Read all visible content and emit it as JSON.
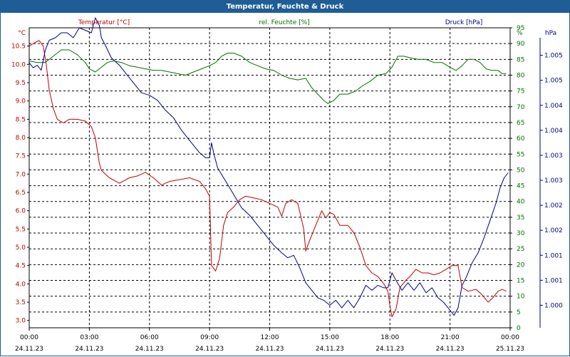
{
  "window": {
    "title": "Temperatur, Feuchte & Druck"
  },
  "colors": {
    "temperature": "#c00000",
    "humidity": "#007000",
    "pressure": "#00008b",
    "grid": "#000000",
    "titlebar": "#1f5d96"
  },
  "chart_data": {
    "type": "line",
    "grid": true,
    "x_range": [
      "24.11.23 00:00",
      "25.11.23 00:00"
    ],
    "x_ticks": [
      {
        "time": "00:00",
        "date": "24.11.23"
      },
      {
        "time": "03:00",
        "date": "24.11.23"
      },
      {
        "time": "06:00",
        "date": "24.11.23"
      },
      {
        "time": "09:00",
        "date": "24.11.23"
      },
      {
        "time": "12:00",
        "date": "24.11.23"
      },
      {
        "time": "15:00",
        "date": "24.11.23"
      },
      {
        "time": "18:00",
        "date": "24.11.23"
      },
      {
        "time": "21:00",
        "date": "24.11.23"
      },
      {
        "time": "00:00",
        "date": "25.11.23"
      }
    ],
    "axes": {
      "temperature": {
        "label": "Temperatur [°C]",
        "unit": "°C",
        "range": [
          2.8,
          11.0
        ],
        "ticks": [
          "3.0",
          "3.5",
          "4.0",
          "4.5",
          "5.0",
          "5.5",
          "6.0",
          "6.5",
          "7.0",
          "7.5",
          "8.0",
          "8.5",
          "9.0",
          "9.5",
          "10.0",
          "10.5"
        ]
      },
      "humidity": {
        "label": "rel. Feuchte [%]",
        "unit": "%",
        "range": [
          0,
          95
        ],
        "ticks": [
          "0",
          "5",
          "10",
          "15",
          "20",
          "25",
          "30",
          "35",
          "40",
          "45",
          "50",
          "55",
          "60",
          "65",
          "70",
          "75",
          "80",
          "85",
          "90",
          "95"
        ]
      },
      "pressure": {
        "label": "Druck [hPa]",
        "unit": "hPa",
        "range": [
          999.55,
          1005.55
        ],
        "ticks": [
          {
            "value": 1000.0,
            "label": "1.000"
          },
          {
            "value": 1000.5,
            "label": "1.001"
          },
          {
            "value": 1001.0,
            "label": "1.001"
          },
          {
            "value": 1001.5,
            "label": "1.002"
          },
          {
            "value": 1002.0,
            "label": "1.002"
          },
          {
            "value": 1002.5,
            "label": "1.003"
          },
          {
            "value": 1003.0,
            "label": "1.003"
          },
          {
            "value": 1003.5,
            "label": "1.004"
          },
          {
            "value": 1004.0,
            "label": "1.004"
          },
          {
            "value": 1004.5,
            "label": "1.005"
          },
          {
            "value": 1005.0,
            "label": "1.005"
          }
        ]
      }
    },
    "series": [
      {
        "name": "Temperatur [°C]",
        "axis": "temperature",
        "points": [
          [
            0.0,
            10.5
          ],
          [
            0.3,
            10.6
          ],
          [
            0.5,
            10.65
          ],
          [
            0.7,
            10.5
          ],
          [
            0.85,
            10.0
          ],
          [
            1.0,
            9.3
          ],
          [
            1.2,
            8.8
          ],
          [
            1.4,
            8.5
          ],
          [
            1.7,
            8.4
          ],
          [
            2.0,
            8.5
          ],
          [
            2.4,
            8.5
          ],
          [
            2.8,
            8.45
          ],
          [
            3.1,
            8.3
          ],
          [
            3.3,
            8.0
          ],
          [
            3.5,
            7.3
          ],
          [
            3.6,
            7.1
          ],
          [
            4.0,
            6.9
          ],
          [
            4.5,
            6.75
          ],
          [
            5.0,
            6.9
          ],
          [
            5.4,
            6.95
          ],
          [
            5.8,
            7.05
          ],
          [
            6.2,
            6.9
          ],
          [
            6.6,
            6.7
          ],
          [
            7.0,
            6.8
          ],
          [
            7.5,
            6.85
          ],
          [
            8.0,
            6.9
          ],
          [
            8.5,
            6.8
          ],
          [
            8.8,
            6.6
          ],
          [
            9.0,
            6.4
          ],
          [
            9.1,
            4.5
          ],
          [
            9.3,
            4.35
          ],
          [
            9.5,
            4.7
          ],
          [
            9.7,
            5.6
          ],
          [
            9.9,
            5.95
          ],
          [
            10.2,
            6.1
          ],
          [
            10.5,
            6.3
          ],
          [
            10.8,
            6.4
          ],
          [
            11.2,
            6.35
          ],
          [
            11.6,
            6.3
          ],
          [
            12.0,
            6.2
          ],
          [
            12.4,
            6.1
          ],
          [
            12.6,
            5.85
          ],
          [
            12.8,
            6.2
          ],
          [
            13.1,
            6.3
          ],
          [
            13.4,
            6.2
          ],
          [
            13.7,
            5.5
          ],
          [
            13.8,
            4.9
          ],
          [
            14.0,
            5.2
          ],
          [
            14.3,
            5.6
          ],
          [
            14.6,
            6.0
          ],
          [
            14.8,
            5.8
          ],
          [
            15.0,
            5.95
          ],
          [
            15.2,
            5.9
          ],
          [
            15.5,
            5.6
          ],
          [
            15.9,
            5.6
          ],
          [
            16.2,
            5.4
          ],
          [
            16.5,
            5.0
          ],
          [
            16.8,
            4.5
          ],
          [
            17.1,
            4.3
          ],
          [
            17.4,
            4.2
          ],
          [
            17.7,
            4.0
          ],
          [
            17.9,
            3.8
          ],
          [
            18.0,
            3.4
          ],
          [
            18.1,
            3.1
          ],
          [
            18.3,
            3.3
          ],
          [
            18.5,
            3.9
          ],
          [
            18.8,
            4.1
          ],
          [
            19.0,
            4.2
          ],
          [
            19.3,
            4.4
          ],
          [
            19.6,
            4.3
          ],
          [
            19.9,
            4.3
          ],
          [
            20.2,
            4.25
          ],
          [
            20.5,
            4.3
          ],
          [
            20.8,
            4.4
          ],
          [
            21.1,
            4.5
          ],
          [
            21.4,
            4.5
          ],
          [
            21.6,
            3.9
          ],
          [
            21.9,
            3.8
          ],
          [
            22.3,
            3.85
          ],
          [
            22.6,
            3.7
          ],
          [
            22.9,
            3.5
          ],
          [
            23.1,
            3.6
          ],
          [
            23.4,
            3.8
          ],
          [
            23.6,
            3.85
          ],
          [
            23.8,
            3.8
          ]
        ]
      },
      {
        "name": "rel. Feuchte [%]",
        "axis": "humidity",
        "points": [
          [
            0.0,
            84.5
          ],
          [
            0.4,
            84
          ],
          [
            0.8,
            84
          ],
          [
            1.2,
            86
          ],
          [
            1.6,
            88
          ],
          [
            2.0,
            88
          ],
          [
            2.4,
            86.5
          ],
          [
            2.8,
            84
          ],
          [
            3.0,
            82
          ],
          [
            3.3,
            81
          ],
          [
            3.6,
            82.5
          ],
          [
            3.9,
            84
          ],
          [
            4.2,
            84.5
          ],
          [
            4.6,
            84
          ],
          [
            5.0,
            83
          ],
          [
            5.4,
            82.5
          ],
          [
            5.8,
            82
          ],
          [
            6.2,
            81.5
          ],
          [
            6.6,
            81.5
          ],
          [
            7.0,
            81
          ],
          [
            7.4,
            80.5
          ],
          [
            7.8,
            80
          ],
          [
            8.2,
            81
          ],
          [
            8.6,
            82
          ],
          [
            9.0,
            83
          ],
          [
            9.3,
            84
          ],
          [
            9.6,
            86
          ],
          [
            9.9,
            87
          ],
          [
            10.2,
            87
          ],
          [
            10.6,
            86
          ],
          [
            11.0,
            84
          ],
          [
            11.4,
            83
          ],
          [
            11.8,
            82
          ],
          [
            12.2,
            81.5
          ],
          [
            12.6,
            80
          ],
          [
            13.0,
            79
          ],
          [
            13.4,
            78.5
          ],
          [
            13.8,
            79
          ],
          [
            14.1,
            76
          ],
          [
            14.4,
            74
          ],
          [
            14.7,
            72
          ],
          [
            14.9,
            71
          ],
          [
            15.2,
            72
          ],
          [
            15.5,
            74
          ],
          [
            15.9,
            74
          ],
          [
            16.3,
            75
          ],
          [
            16.6,
            76.5
          ],
          [
            17.0,
            78
          ],
          [
            17.4,
            80
          ],
          [
            17.8,
            80.5
          ],
          [
            18.1,
            82.5
          ],
          [
            18.4,
            86
          ],
          [
            18.7,
            86
          ],
          [
            19.0,
            85.5
          ],
          [
            19.4,
            85
          ],
          [
            19.8,
            85
          ],
          [
            20.2,
            84
          ],
          [
            20.6,
            84
          ],
          [
            21.0,
            82.5
          ],
          [
            21.3,
            81.5
          ],
          [
            21.6,
            83
          ],
          [
            21.9,
            85
          ],
          [
            22.2,
            85
          ],
          [
            22.5,
            84
          ],
          [
            22.8,
            82
          ],
          [
            23.1,
            81.5
          ],
          [
            23.4,
            81.5
          ],
          [
            23.6,
            80.5
          ],
          [
            23.8,
            80.5
          ]
        ]
      },
      {
        "name": "Druck [hPa]",
        "axis": "pressure",
        "points": [
          [
            0.0,
            1004.85
          ],
          [
            0.2,
            1004.75
          ],
          [
            0.4,
            1004.8
          ],
          [
            0.6,
            1004.7
          ],
          [
            0.8,
            1005.1
          ],
          [
            1.0,
            1005.3
          ],
          [
            1.3,
            1005.35
          ],
          [
            1.6,
            1005.45
          ],
          [
            1.9,
            1005.45
          ],
          [
            2.2,
            1005.35
          ],
          [
            2.5,
            1005.55
          ],
          [
            2.8,
            1005.5
          ],
          [
            3.1,
            1005.45
          ],
          [
            3.3,
            1005.75
          ],
          [
            3.5,
            1005.6
          ],
          [
            3.6,
            1005.35
          ],
          [
            3.8,
            1005.2
          ],
          [
            4.1,
            1004.95
          ],
          [
            4.5,
            1004.8
          ],
          [
            4.9,
            1004.6
          ],
          [
            5.3,
            1004.4
          ],
          [
            5.6,
            1004.25
          ],
          [
            6.0,
            1004.2
          ],
          [
            6.4,
            1004.1
          ],
          [
            6.8,
            1003.9
          ],
          [
            7.2,
            1003.75
          ],
          [
            7.6,
            1003.5
          ],
          [
            7.9,
            1003.35
          ],
          [
            8.2,
            1003.2
          ],
          [
            8.5,
            1003.05
          ],
          [
            8.8,
            1002.95
          ],
          [
            9.0,
            1002.95
          ],
          [
            9.1,
            1003.25
          ],
          [
            9.2,
            1003.05
          ],
          [
            9.4,
            1002.75
          ],
          [
            9.7,
            1002.55
          ],
          [
            10.0,
            1002.35
          ],
          [
            10.3,
            1002.15
          ],
          [
            10.6,
            1001.95
          ],
          [
            11.0,
            1001.8
          ],
          [
            11.4,
            1001.6
          ],
          [
            11.8,
            1001.4
          ],
          [
            12.2,
            1001.2
          ],
          [
            12.6,
            1001.05
          ],
          [
            12.9,
            1000.95
          ],
          [
            13.2,
            1001.0
          ],
          [
            13.5,
            1000.75
          ],
          [
            13.8,
            1000.45
          ],
          [
            14.1,
            1000.3
          ],
          [
            14.4,
            1000.15
          ],
          [
            14.7,
            1000.1
          ],
          [
            15.0,
            1000.0
          ],
          [
            15.3,
            1000.1
          ],
          [
            15.6,
            999.95
          ],
          [
            15.9,
            1000.1
          ],
          [
            16.2,
            999.95
          ],
          [
            16.5,
            1000.15
          ],
          [
            16.8,
            1000.4
          ],
          [
            17.1,
            1000.3
          ],
          [
            17.4,
            1000.4
          ],
          [
            17.7,
            1000.35
          ],
          [
            17.9,
            1000.35
          ],
          [
            18.1,
            1000.65
          ],
          [
            18.3,
            1000.5
          ],
          [
            18.6,
            1000.3
          ],
          [
            18.9,
            1000.45
          ],
          [
            19.2,
            1000.3
          ],
          [
            19.5,
            1000.45
          ],
          [
            19.8,
            1000.25
          ],
          [
            20.1,
            1000.35
          ],
          [
            20.4,
            1000.15
          ],
          [
            20.7,
            1000.05
          ],
          [
            21.0,
            999.9
          ],
          [
            21.2,
            999.8
          ],
          [
            21.4,
            999.95
          ],
          [
            21.6,
            1000.4
          ],
          [
            21.8,
            1000.55
          ],
          [
            22.1,
            1000.85
          ],
          [
            22.4,
            1001.05
          ],
          [
            22.7,
            1001.35
          ],
          [
            23.0,
            1001.7
          ],
          [
            23.3,
            1002.05
          ],
          [
            23.5,
            1002.35
          ],
          [
            23.7,
            1002.55
          ],
          [
            23.9,
            1002.65
          ]
        ]
      }
    ]
  }
}
